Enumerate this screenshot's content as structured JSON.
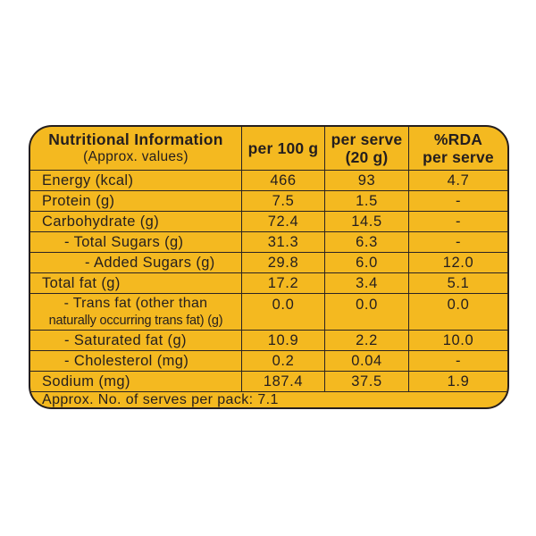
{
  "colors": {
    "label_background": "#F4B920",
    "ink": "#241e1e",
    "page_background": "#ffffff"
  },
  "table": {
    "header": {
      "col1_title": "Nutritional Information",
      "col1_subtitle": "(Approx. values)",
      "col2": "per 100 g",
      "col3_line1": "per serve",
      "col3_line2": "(20 g)",
      "col4_line1": "%RDA",
      "col4_line2": "per serve"
    },
    "rows": [
      {
        "label": "Energy (kcal)",
        "per100": "466",
        "serve": "93",
        "rda": "4.7"
      },
      {
        "label": "Protein (g)",
        "per100": "7.5",
        "serve": "1.5",
        "rda": "-"
      },
      {
        "label": "Carbohydrate (g)",
        "per100": "72.4",
        "serve": "14.5",
        "rda": "-"
      },
      {
        "label": "- Total Sugars (g)",
        "per100": "31.3",
        "serve": "6.3",
        "rda": "-"
      },
      {
        "label": "- Added Sugars (g)",
        "per100": "29.8",
        "serve": "6.0",
        "rda": "12.0"
      },
      {
        "label": "Total fat (g)",
        "per100": "17.2",
        "serve": "3.4",
        "rda": "5.1"
      },
      {
        "label_line1": "- Trans fat (other than",
        "label_line2": "naturally occurring trans fat) (g)",
        "per100": "0.0",
        "serve": "0.0",
        "rda": "0.0"
      },
      {
        "label": "- Saturated fat (g)",
        "per100": "10.9",
        "serve": "2.2",
        "rda": "10.0"
      },
      {
        "label": "- Cholesterol (mg)",
        "per100": "0.2",
        "serve": "0.04",
        "rda": "-"
      },
      {
        "label": "Sodium (mg)",
        "per100": "187.4",
        "serve": "37.5",
        "rda": "1.9"
      }
    ],
    "footer": "Approx. No. of serves per pack: 7.1"
  }
}
